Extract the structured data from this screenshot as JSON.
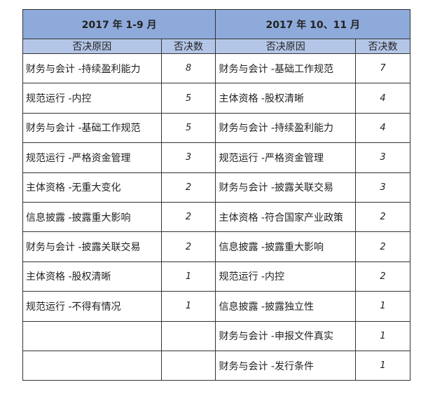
{
  "periods": [
    "2017 年 1-9 月",
    "2017 年 10、11 月"
  ],
  "headers": {
    "reason": "否决原因",
    "count": "否决数"
  },
  "left": [
    [
      "财务与会计 -持续盈利能力",
      "8"
    ],
    [
      "规范运行 -内控",
      "5"
    ],
    [
      "财务与会计 -基础工作规范",
      "5"
    ],
    [
      "规范运行 -严格资金管理",
      "3"
    ],
    [
      "主体资格 -无重大变化",
      "2"
    ],
    [
      "信息披露 -披露重大影响",
      "2"
    ],
    [
      "财务与会计 -披露关联交易",
      "2"
    ],
    [
      "主体资格 -股权清晰",
      "1"
    ],
    [
      "规范运行 -不得有情况",
      "1"
    ],
    [
      "",
      ""
    ],
    [
      "",
      ""
    ]
  ],
  "right": [
    [
      "财务与会计 -基础工作规范",
      "7"
    ],
    [
      "主体资格 -股权清晰",
      "4"
    ],
    [
      "财务与会计 -持续盈利能力",
      "4"
    ],
    [
      "规范运行 -严格资金管理",
      "3"
    ],
    [
      "财务与会计 -披露关联交易",
      "3"
    ],
    [
      "主体资格 -符合国家产业政策",
      "2"
    ],
    [
      "信息披露 -披露重大影响",
      "2"
    ],
    [
      "规范运行 -内控",
      "2"
    ],
    [
      "信息披露 -披露独立性",
      "1"
    ],
    [
      "财务与会计 -申报文件真实",
      "1"
    ],
    [
      "财务与会计 -发行条件",
      "1"
    ]
  ]
}
